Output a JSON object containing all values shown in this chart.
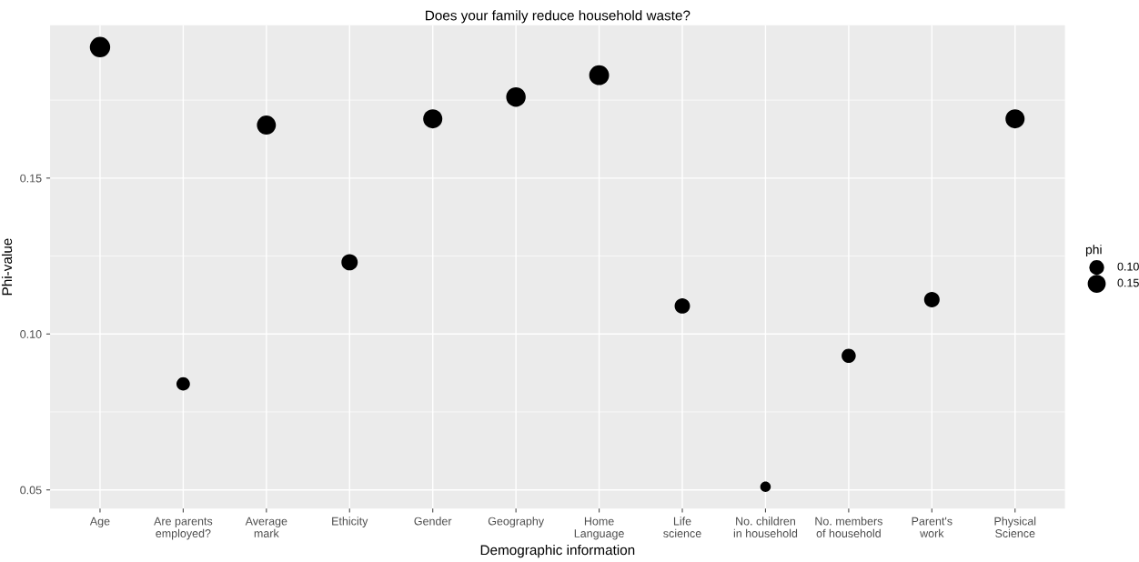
{
  "chart_data": {
    "type": "bubble",
    "subtitle": "Does your family reduce household waste?",
    "xlabel": "Demographic information",
    "ylabel": "Phi-value",
    "legend_title": "phi",
    "categories": [
      "Age",
      "Are parents\nemployed?",
      "Average\nmark",
      "Ethicity",
      "Gender",
      "Geography",
      "Home\nLanguage",
      "Life\nscience",
      "No. children\nin household",
      "No. members\nof household",
      "Parent's\nwork",
      "Physical\nScience"
    ],
    "series": [
      {
        "color": "#000000",
        "values": [
          0.192,
          0.084,
          0.167,
          0.123,
          0.169,
          0.176,
          0.183,
          0.109,
          0.051,
          0.093,
          0.111,
          0.169
        ],
        "sizes": [
          0.192,
          0.084,
          0.167,
          0.123,
          0.169,
          0.176,
          0.183,
          0.109,
          0.051,
          0.093,
          0.111,
          0.169
        ]
      }
    ],
    "size_legend": [
      {
        "value": 0.1,
        "label": "0.10"
      },
      {
        "value": 0.15,
        "label": "0.15"
      }
    ],
    "ylim": [
      0.044,
      0.199
    ],
    "yticks": [
      {
        "value": 0.05,
        "label": "0.05"
      },
      {
        "value": 0.1,
        "label": "0.10"
      },
      {
        "value": 0.15,
        "label": "0.15"
      }
    ],
    "grid": true
  }
}
